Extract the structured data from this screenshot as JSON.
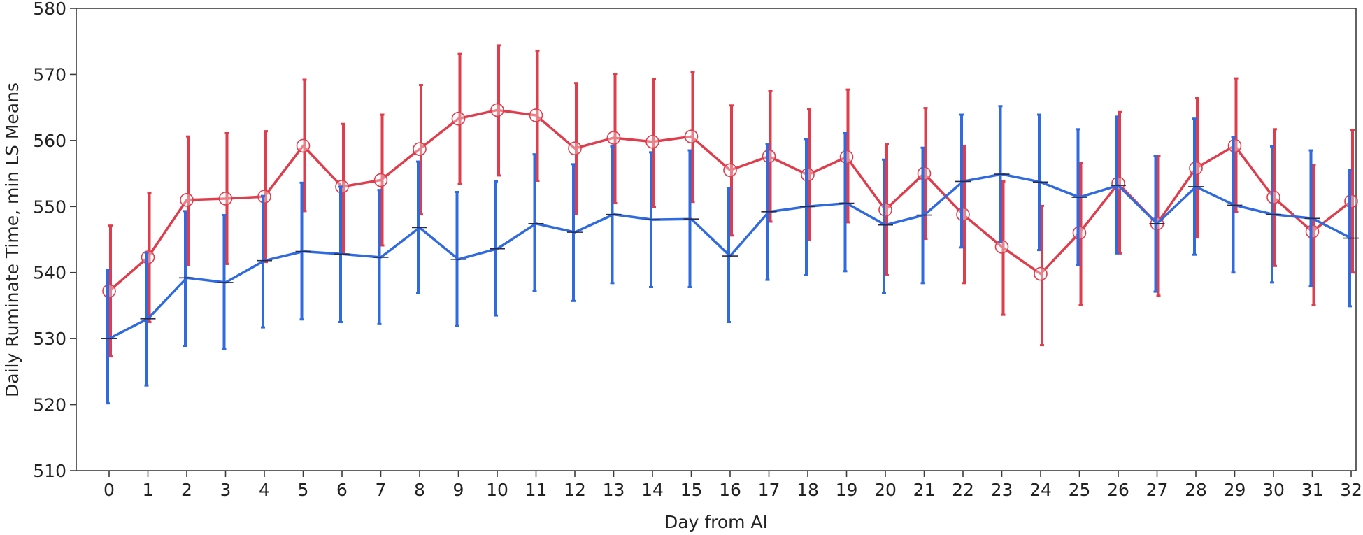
{
  "chart_data": {
    "type": "line",
    "title": "",
    "xlabel": "Day from AI",
    "ylabel": "Daily Ruminate Time, min LS Means",
    "ylim": [
      510,
      580
    ],
    "yticks": [
      510,
      520,
      530,
      540,
      550,
      560,
      570,
      580
    ],
    "xticks": [
      0,
      1,
      2,
      3,
      4,
      5,
      6,
      7,
      8,
      9,
      10,
      11,
      12,
      13,
      14,
      15,
      16,
      17,
      18,
      19,
      20,
      21,
      22,
      23,
      24,
      25,
      26,
      27,
      28,
      29,
      30,
      31,
      32
    ],
    "grid": false,
    "error_bars": true,
    "series": [
      {
        "color": "#e03c4b",
        "marker": "circle",
        "x": [
          0,
          1,
          2,
          3,
          4,
          5,
          6,
          7,
          8,
          9,
          10,
          11,
          12,
          13,
          14,
          15,
          16,
          17,
          18,
          19,
          20,
          21,
          22,
          23,
          24,
          25,
          26,
          27,
          28,
          29,
          30,
          31,
          32
        ],
        "y": [
          537.2,
          542.3,
          551.0,
          551.2,
          551.5,
          559.2,
          553.0,
          554.0,
          558.7,
          563.3,
          564.6,
          563.8,
          558.8,
          560.4,
          559.8,
          560.6,
          555.5,
          557.6,
          554.8,
          557.5,
          549.5,
          555.0,
          548.8,
          543.9,
          539.8,
          546.0,
          553.5,
          547.4,
          555.8,
          559.2,
          551.4,
          546.2,
          550.8
        ],
        "err_low": [
          527.3,
          532.5,
          541.1,
          541.3,
          541.6,
          549.3,
          543.1,
          544.1,
          548.8,
          553.4,
          554.7,
          553.9,
          548.9,
          550.5,
          549.9,
          550.7,
          545.6,
          547.7,
          544.9,
          547.6,
          539.6,
          545.1,
          538.4,
          533.6,
          529.0,
          535.1,
          542.9,
          536.5,
          545.3,
          549.2,
          541.0,
          535.1,
          540.0
        ],
        "err_high": [
          547.1,
          552.1,
          560.6,
          561.1,
          561.4,
          569.2,
          562.5,
          563.9,
          568.4,
          573.1,
          574.4,
          573.6,
          568.7,
          570.1,
          569.3,
          570.4,
          565.3,
          567.5,
          564.7,
          567.7,
          559.4,
          564.9,
          559.2,
          553.8,
          550.1,
          556.6,
          564.3,
          557.6,
          566.4,
          569.4,
          561.7,
          556.3,
          561.6
        ]
      },
      {
        "color": "#2f6ae0",
        "marker": "dash",
        "x": [
          0,
          1,
          2,
          3,
          4,
          5,
          6,
          7,
          8,
          9,
          10,
          11,
          12,
          13,
          14,
          15,
          16,
          17,
          18,
          19,
          20,
          21,
          22,
          23,
          24,
          25,
          26,
          27,
          28,
          29,
          30,
          31,
          32
        ],
        "y": [
          530.0,
          533.0,
          539.2,
          538.5,
          541.8,
          543.2,
          542.8,
          542.3,
          546.8,
          542.0,
          543.6,
          547.4,
          546.1,
          548.8,
          548.0,
          548.1,
          542.5,
          549.2,
          550.0,
          550.5,
          547.2,
          548.7,
          553.8,
          554.9,
          553.7,
          551.4,
          553.2,
          547.4,
          553.0,
          550.2,
          548.8,
          548.2,
          545.2
        ],
        "err_low": [
          520.2,
          522.9,
          528.9,
          528.4,
          531.7,
          532.9,
          532.5,
          532.2,
          536.9,
          531.9,
          533.5,
          537.2,
          535.7,
          538.4,
          537.8,
          537.8,
          532.5,
          538.9,
          539.6,
          540.2,
          536.9,
          538.4,
          543.8,
          544.6,
          543.4,
          541.1,
          542.9,
          537.1,
          542.7,
          540.0,
          538.5,
          537.9,
          534.9
        ],
        "err_high": [
          540.4,
          543.0,
          549.3,
          548.7,
          551.6,
          553.6,
          553.0,
          552.5,
          556.8,
          552.2,
          553.8,
          557.9,
          556.4,
          559.1,
          558.2,
          558.5,
          552.8,
          559.4,
          560.2,
          561.1,
          557.1,
          558.9,
          563.9,
          565.2,
          563.9,
          561.7,
          563.6,
          557.6,
          563.3,
          560.5,
          559.1,
          558.5,
          555.5
        ]
      }
    ]
  }
}
